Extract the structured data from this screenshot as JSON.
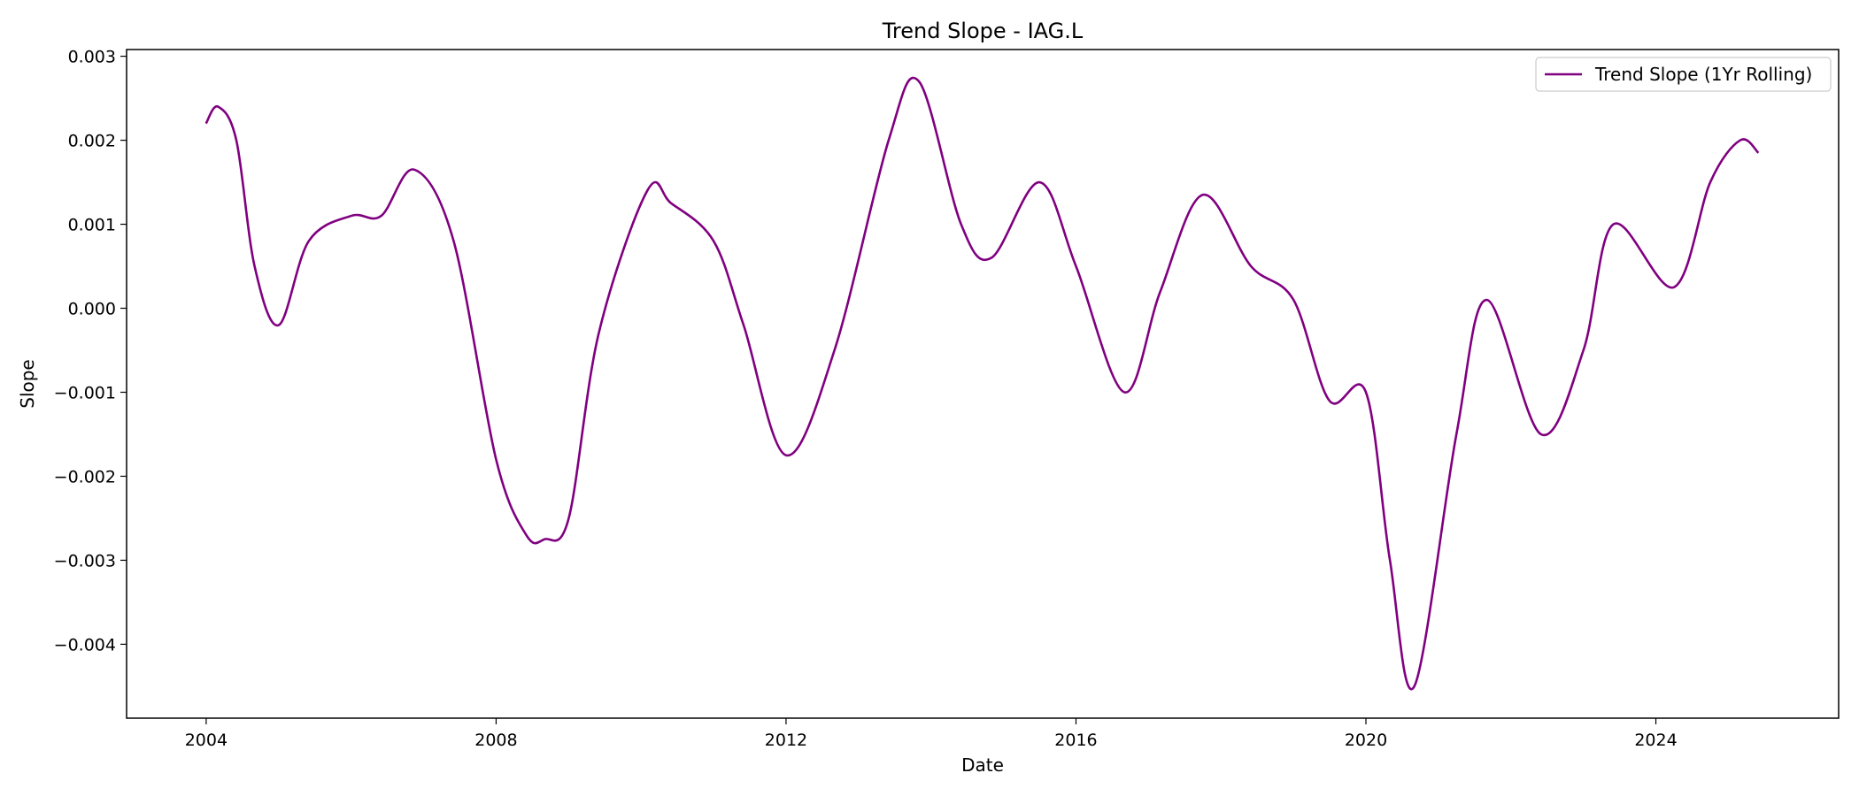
{
  "chart_data": {
    "type": "line",
    "title": "Trend Slope - IAG.L",
    "xlabel": "Date",
    "ylabel": "Slope",
    "x_tick_labels": [
      "2004",
      "2008",
      "2012",
      "2016",
      "2020",
      "2024"
    ],
    "x_ticks": [
      "2004-01-01",
      "2008-01-01",
      "2012-01-01",
      "2016-01-01",
      "2020-01-01",
      "2024-01-01"
    ],
    "y_tick_labels": [
      "-0.004",
      "-0.003",
      "-0.002",
      "-0.001",
      "0.000",
      "0.001",
      "0.002",
      "0.003"
    ],
    "y_ticks": [
      -0.004,
      -0.003,
      -0.002,
      -0.001,
      0.0,
      0.001,
      0.002,
      0.003
    ],
    "xlim": [
      "2002-11-26",
      "2026-07-10"
    ],
    "ylim": [
      -0.00488,
      0.00308
    ],
    "grid": false,
    "legend_position": "top-right",
    "series": [
      {
        "name": "Trend Slope (1Yr Rolling)",
        "color": "#800080",
        "x": [
          "2003-12-31",
          "2004-03-01",
          "2004-06-01",
          "2004-09-01",
          "2005-01-01",
          "2005-06-01",
          "2006-01-01",
          "2006-06-01",
          "2006-11-15",
          "2007-06-01",
          "2008-01-01",
          "2008-06-01",
          "2008-09-01",
          "2009-01-01",
          "2009-06-01",
          "2010-02-01",
          "2010-06-01",
          "2011-01-01",
          "2011-06-01",
          "2012-01-01",
          "2012-09-01",
          "2013-06-01",
          "2013-11-01",
          "2014-06-01",
          "2014-11-01",
          "2015-07-01",
          "2016-01-01",
          "2016-09-01",
          "2017-03-01",
          "2017-10-01",
          "2018-06-01",
          "2019-01-01",
          "2019-07-01",
          "2020-01-01",
          "2020-05-01",
          "2020-09-01",
          "2021-04-01",
          "2021-09-01",
          "2022-06-01",
          "2023-01-01",
          "2023-06-01",
          "2024-04-01",
          "2024-10-01",
          "2025-03-01",
          "2025-06-01"
        ],
        "y": [
          0.0022,
          0.0024,
          0.002,
          0.0005,
          -0.0002,
          0.0008,
          0.0011,
          0.0011,
          0.00165,
          0.0008,
          -0.0018,
          -0.0027,
          -0.00275,
          -0.0025,
          -0.0003,
          0.0014,
          0.00125,
          0.0008,
          -0.0002,
          -0.00175,
          -0.0005,
          0.002,
          0.0027,
          0.001,
          0.0006,
          0.0015,
          0.0005,
          -0.001,
          0.0002,
          0.00135,
          0.0005,
          0.0001,
          -0.0011,
          -0.001,
          -0.003,
          -0.0045,
          -0.0015,
          0.0001,
          -0.0015,
          -0.0005,
          0.001,
          0.00025,
          0.0015,
          0.002,
          0.00185
        ]
      }
    ]
  }
}
